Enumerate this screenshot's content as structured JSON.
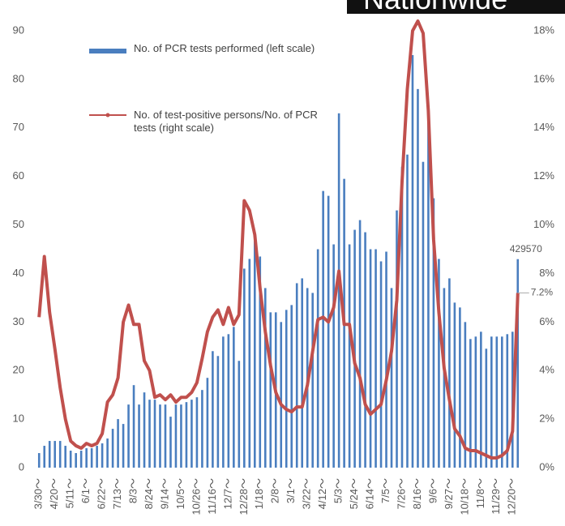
{
  "chart_data": {
    "type": "bar-line",
    "annotation": "Nationwide",
    "categories": [
      "3/30～",
      null,
      null,
      "4/20～",
      null,
      null,
      "5/11～",
      null,
      null,
      "6/1～",
      null,
      null,
      "6/22～",
      null,
      null,
      "7/13～",
      null,
      null,
      "8/3～",
      null,
      null,
      "8/24～",
      null,
      null,
      "9/14～",
      null,
      null,
      "10/5～",
      null,
      null,
      "10/26～",
      null,
      null,
      "11/16～",
      null,
      null,
      "12/7～",
      null,
      null,
      "12/28～",
      null,
      null,
      "1/18～",
      null,
      null,
      "2/8～",
      null,
      null,
      "3/1～",
      null,
      null,
      "3/22～",
      null,
      null,
      "4/12～",
      null,
      null,
      "5/3～",
      null,
      null,
      "5/24～",
      null,
      null,
      "6/14～",
      null,
      null,
      "7/5～",
      null,
      null,
      "7/26～",
      null,
      null,
      "8/16～",
      null,
      null,
      "9/6～",
      null,
      null,
      "9/27～",
      null,
      null,
      "10/18～",
      null,
      null,
      "11/8～",
      null,
      null,
      "11/29～",
      null,
      null,
      "12/20～",
      null
    ],
    "series": [
      {
        "name": "No. of PCR tests performed (left scale)",
        "type": "bar",
        "color": "#4a7ebf",
        "axis": "y",
        "values": [
          3,
          4.5,
          5.5,
          5.5,
          5.5,
          4.5,
          3.5,
          3,
          3.5,
          4,
          4,
          4.5,
          5,
          6,
          8,
          10,
          9,
          13,
          17,
          13,
          15.5,
          14,
          14,
          13,
          13,
          10.5,
          13,
          13,
          13.5,
          14,
          14.5,
          16,
          18.5,
          24,
          23,
          27,
          27.5,
          29,
          22,
          41,
          43,
          47.5,
          43.5,
          37,
          32,
          32,
          30,
          32.5,
          33.5,
          38,
          39,
          37,
          36,
          45,
          57,
          56,
          46,
          73,
          59.5,
          46,
          49,
          51,
          48.5,
          45,
          45,
          42.5,
          44.5,
          37,
          53,
          62,
          64.5,
          85,
          78,
          63,
          71,
          55.5,
          43,
          37,
          39,
          34,
          33,
          30,
          26.5,
          27,
          28,
          24.5,
          27,
          27,
          27,
          27.5,
          28,
          42.957
        ],
        "value_labels": [
          null,
          null,
          null,
          null,
          null,
          null,
          null,
          null,
          null,
          null,
          null,
          null,
          null,
          null,
          null,
          null,
          null,
          null,
          null,
          null,
          null,
          null,
          null,
          null,
          null,
          null,
          null,
          null,
          null,
          null,
          null,
          null,
          null,
          null,
          null,
          null,
          null,
          null,
          null,
          null,
          null,
          null,
          null,
          null,
          null,
          null,
          null,
          null,
          null,
          null,
          null,
          null,
          null,
          null,
          null,
          null,
          null,
          null,
          null,
          null,
          null,
          null,
          null,
          null,
          null,
          null,
          null,
          null,
          null,
          null,
          null,
          null,
          null,
          null,
          null,
          null,
          null,
          null,
          null,
          null,
          null,
          null,
          null,
          null,
          null,
          null,
          null,
          null,
          null,
          null,
          null,
          "429570"
        ]
      },
      {
        "name": "No. of test-positive persons/No. of PCR tests (right scale)",
        "type": "line",
        "color": "#c0504d",
        "axis": "y2",
        "values": [
          6.2,
          8.7,
          6.4,
          4.9,
          3.3,
          2.0,
          1.1,
          0.9,
          0.8,
          1.0,
          0.9,
          1.0,
          1.4,
          2.7,
          3.0,
          3.7,
          6.0,
          6.7,
          5.9,
          5.9,
          4.4,
          4.0,
          2.9,
          3.0,
          2.8,
          3.0,
          2.7,
          2.9,
          2.9,
          3.1,
          3.5,
          4.5,
          5.6,
          6.2,
          6.5,
          5.9,
          6.6,
          5.9,
          6.3,
          11.0,
          10.6,
          9.6,
          7.4,
          5.6,
          4.2,
          3.1,
          2.6,
          2.4,
          2.3,
          2.5,
          2.5,
          3.4,
          4.8,
          6.1,
          6.2,
          6.0,
          6.6,
          8.1,
          5.9,
          5.9,
          4.3,
          3.7,
          2.6,
          2.2,
          2.4,
          2.6,
          3.6,
          4.8,
          6.9,
          11.8,
          15.6,
          18.0,
          18.4,
          17.9,
          14.7,
          9.4,
          6.4,
          4.1,
          2.8,
          1.6,
          1.3,
          0.8,
          0.7,
          0.7,
          0.6,
          0.5,
          0.4,
          0.4,
          0.5,
          0.7,
          1.5,
          7.2
        ],
        "value_labels": [
          null,
          null,
          null,
          null,
          null,
          null,
          null,
          null,
          null,
          null,
          null,
          null,
          null,
          null,
          null,
          null,
          null,
          null,
          null,
          null,
          null,
          null,
          null,
          null,
          null,
          null,
          null,
          null,
          null,
          null,
          null,
          null,
          null,
          null,
          null,
          null,
          null,
          null,
          null,
          null,
          null,
          null,
          null,
          null,
          null,
          null,
          null,
          null,
          null,
          null,
          null,
          null,
          null,
          null,
          null,
          null,
          null,
          null,
          null,
          null,
          null,
          null,
          null,
          null,
          null,
          null,
          null,
          null,
          null,
          null,
          null,
          null,
          null,
          null,
          null,
          null,
          null,
          null,
          null,
          null,
          null,
          null,
          null,
          null,
          null,
          null,
          null,
          null,
          null,
          null,
          null,
          "7.2%"
        ]
      }
    ],
    "ylim": [
      0,
      90
    ],
    "yticks": [
      0,
      10,
      20,
      30,
      40,
      50,
      60,
      70,
      80,
      90
    ],
    "y2lim": [
      0,
      18
    ],
    "y2ticks": [
      {
        "value": 0,
        "label": "0%"
      },
      {
        "value": 2,
        "label": "2%"
      },
      {
        "value": 4,
        "label": "4%"
      },
      {
        "value": 6,
        "label": "6%"
      },
      {
        "value": 8,
        "label": "8%"
      },
      {
        "value": 10,
        "label": "10%"
      },
      {
        "value": 12,
        "label": "12%"
      },
      {
        "value": 14,
        "label": "14%"
      },
      {
        "value": 16,
        "label": "16%"
      },
      {
        "value": 18,
        "label": "18%"
      }
    ],
    "grid": false
  }
}
